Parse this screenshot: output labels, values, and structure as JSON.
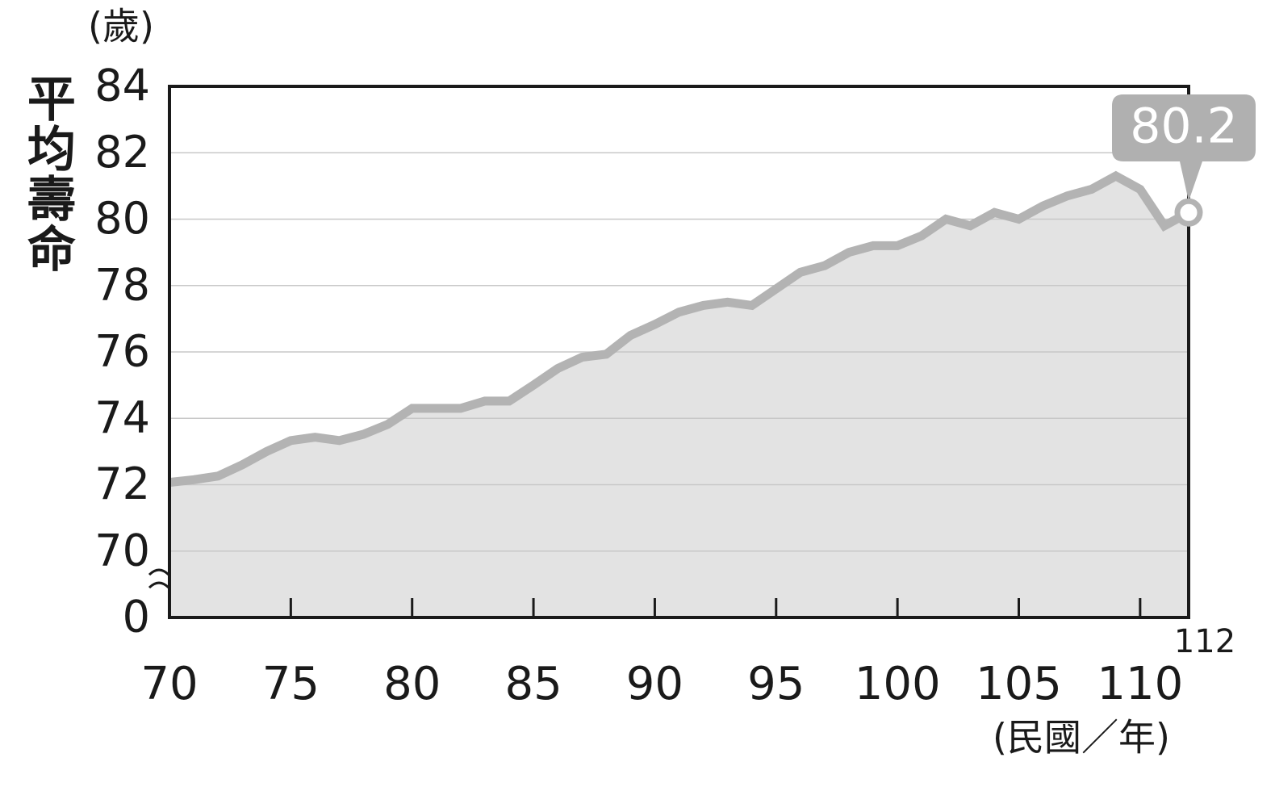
{
  "chart_data": {
    "type": "area",
    "y_unit": "(歲)",
    "y_label": "平均壽命",
    "x_label": "(民國／年)",
    "x": [
      70,
      71,
      72,
      73,
      74,
      75,
      76,
      77,
      78,
      79,
      80,
      81,
      82,
      83,
      84,
      85,
      86,
      87,
      88,
      89,
      90,
      91,
      92,
      93,
      94,
      95,
      96,
      97,
      98,
      99,
      100,
      101,
      102,
      103,
      104,
      105,
      106,
      107,
      108,
      109,
      110,
      111,
      112
    ],
    "values": [
      72.07,
      72.15,
      72.26,
      72.6,
      73.0,
      73.33,
      73.43,
      73.33,
      73.52,
      73.82,
      74.3,
      74.3,
      74.3,
      74.52,
      74.52,
      75.0,
      75.5,
      75.84,
      75.93,
      76.5,
      76.83,
      77.2,
      77.4,
      77.5,
      77.4,
      77.9,
      78.4,
      78.6,
      79.0,
      79.2,
      79.2,
      79.5,
      80.0,
      79.8,
      80.2,
      80.0,
      80.4,
      80.7,
      80.9,
      81.3,
      80.9,
      79.8,
      80.2
    ],
    "line_color": "#b3b3b3",
    "fill_color": "#e3e3e3",
    "xlim": [
      70,
      112
    ],
    "xticks": [
      70,
      75,
      80,
      85,
      90,
      95,
      100,
      105,
      110,
      112
    ],
    "ylim": [
      68,
      84
    ],
    "yticks": [
      0,
      70,
      72,
      74,
      76,
      78,
      80,
      82,
      84
    ],
    "axis_break": true,
    "grid": true,
    "callout_color": "#b0b0b0"
  }
}
